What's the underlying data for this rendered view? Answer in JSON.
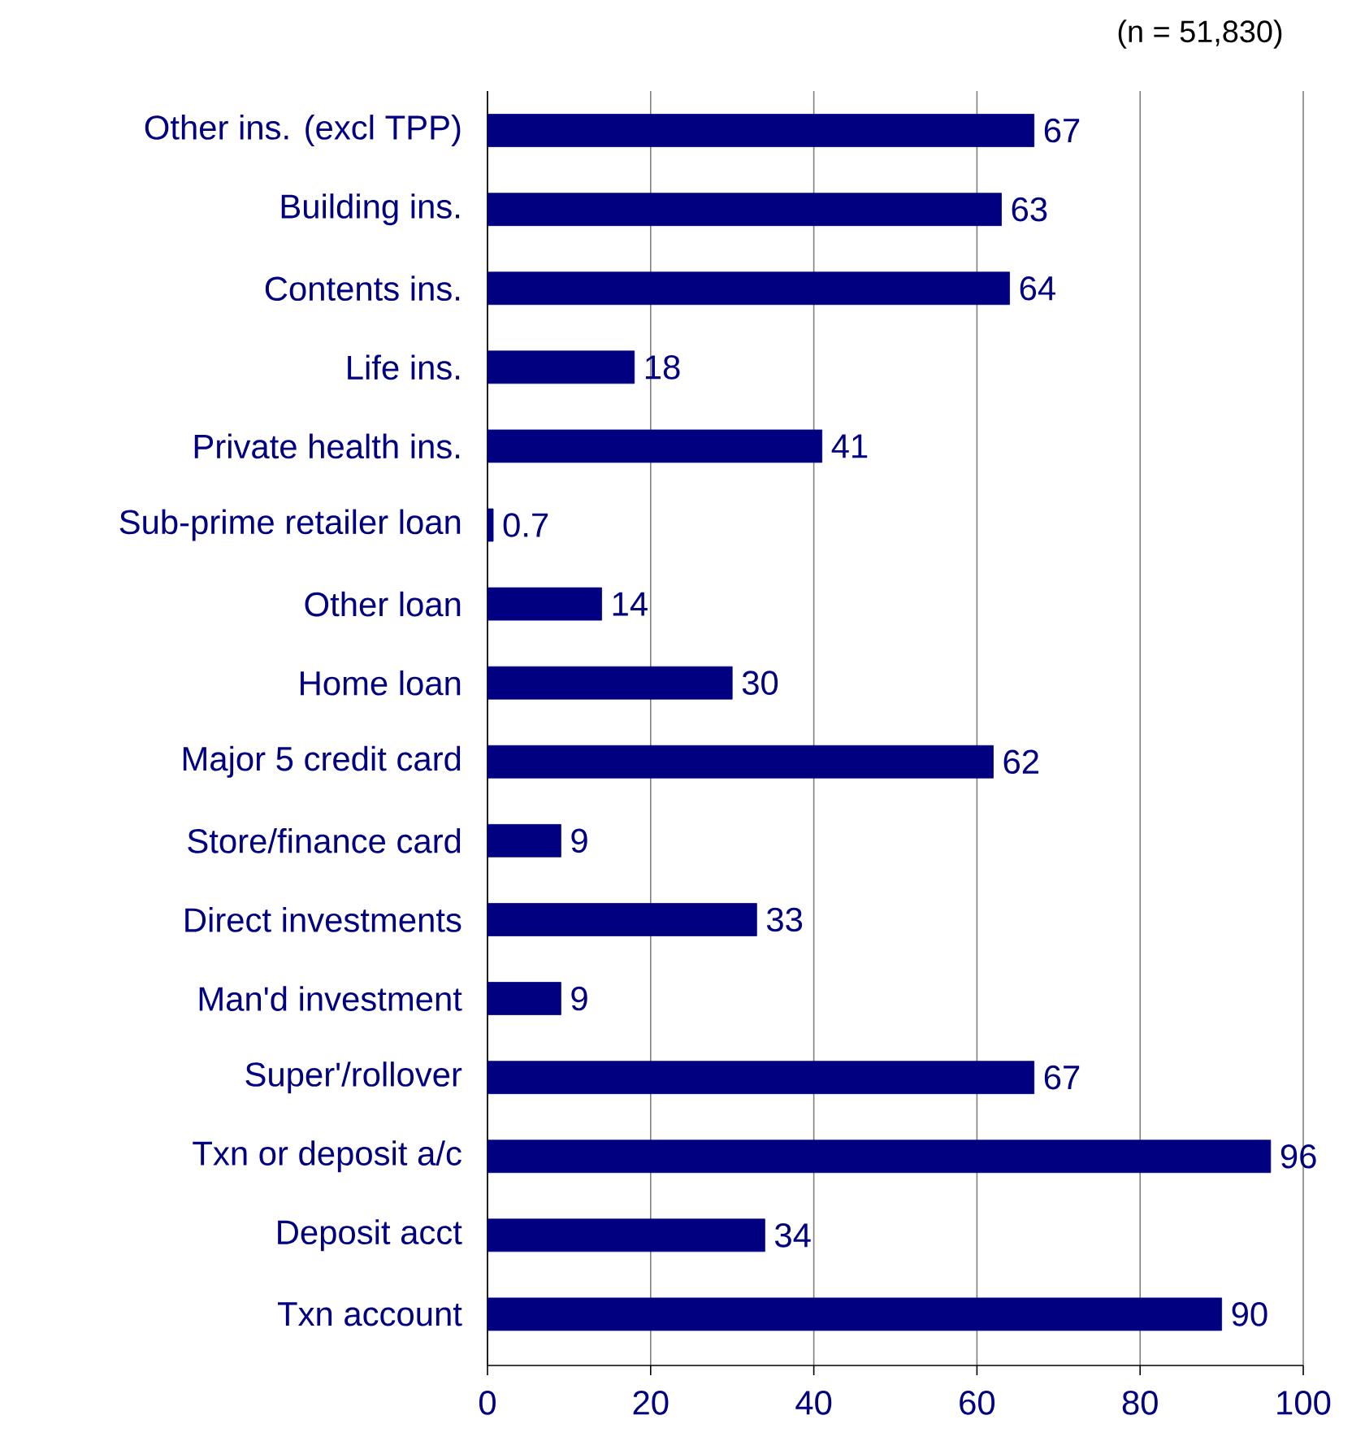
{
  "chart_data": {
    "type": "bar",
    "orientation": "horizontal",
    "categories": [
      "Other ins. (excl TPP)",
      "Building ins.",
      "Contents ins.",
      "Life ins.",
      "Private health ins.",
      "Sub-prime retailer loan",
      "Other loan",
      "Home loan",
      "Major 5 credit card",
      "Store/finance card",
      "Direct investments",
      "Man'd investment",
      "Super'/rollover",
      "Txn or deposit a/c",
      "Deposit acct",
      "Txn account"
    ],
    "values": [
      67,
      63,
      64,
      18,
      41,
      0.7,
      14,
      30,
      62,
      9,
      33,
      9,
      67,
      96,
      34,
      90
    ],
    "color": "#000080",
    "xlim": [
      0,
      100
    ],
    "xticks": [
      0,
      20,
      40,
      60,
      80,
      100
    ],
    "grid": "x",
    "data_labels": true,
    "annotations": [
      "(n = 51,830)"
    ]
  }
}
